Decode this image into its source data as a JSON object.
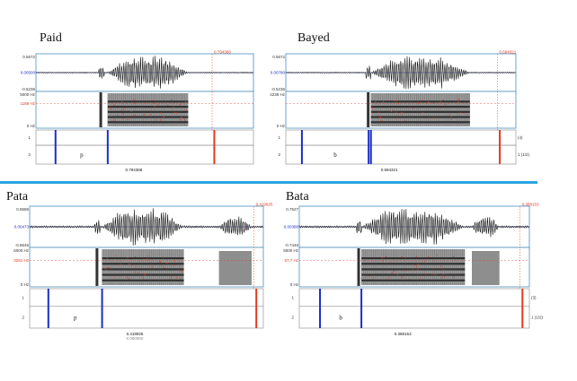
{
  "panels": [
    {
      "title": "Paid",
      "wave_top": "0.5672",
      "wave_mid": "0.00500",
      "wave_bot": "-0.5236",
      "spec_top": "5000 Hz",
      "spec_bot": "0 Hz",
      "spec_red": "1188 Hz",
      "cursor_time": "0.794368",
      "tier1": "1",
      "tier2": "2",
      "segment": "p",
      "right_mark": "",
      "right_mark2": "",
      "time_readout": "0.794368",
      "time_readout2": ""
    },
    {
      "title": "Bayed",
      "wave_top": "0.5672",
      "wave_mid": "0.00780",
      "wave_bot": "-0.5236",
      "spec_top": "4238 Hz",
      "spec_bot": "0 Hz",
      "spec_red": "",
      "cursor_time": "0.694321",
      "tier1": "1",
      "tier2": "2",
      "segment": "b",
      "right_mark": "(4)",
      "right_mark2": "1 (1/2)",
      "time_readout": "0.694321",
      "time_readout2": ""
    },
    {
      "title": "Pata",
      "wave_top": "0.8686",
      "wave_mid": "0.00473",
      "wave_bot": "-0.8646",
      "spec_top": "5000 Hz",
      "spec_bot": "0 Hz",
      "spec_red": "3281 Hz",
      "cursor_time": "0.419925",
      "tier1": "1",
      "tier2": "2",
      "segment": "p",
      "right_mark": "",
      "right_mark2": "",
      "time_readout": "0.419925",
      "time_readout2": "0.000000"
    },
    {
      "title": "Bata",
      "wave_top": "0.7527",
      "wave_mid": "0.00388",
      "wave_bot": "-0.7446",
      "spec_top": "5000 Hz",
      "spec_bot": "0 Hz",
      "spec_red": "67.7 Hz",
      "cursor_time": "0.388153",
      "tier1": "1",
      "tier2": "2",
      "segment": "b",
      "right_mark": "(3)",
      "right_mark2": "1 (1/2)",
      "time_readout": "0.388153",
      "time_readout2": ""
    }
  ],
  "colors": {
    "frame": "#4a8fbf",
    "divider": "#2ba3df",
    "boundary_blue": "#1a2fc4",
    "boundary_red": "#e03a1e",
    "wave": "#111111",
    "label_red": "#e03a1e",
    "label_blue": "#1a2fc4"
  }
}
